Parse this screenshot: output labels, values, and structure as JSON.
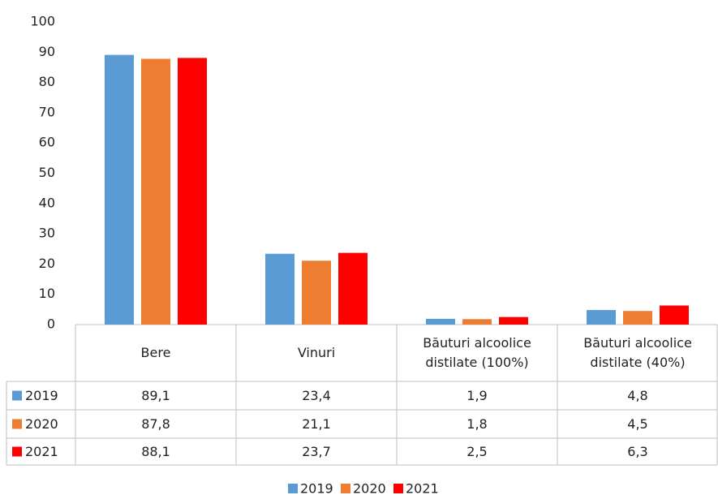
{
  "chart_data": {
    "type": "bar",
    "categories": [
      "Bere",
      "Vinuri",
      "Băuturi alcoolice distilate (100%)",
      "Băuturi alcoolice distilate (40%)"
    ],
    "series": [
      {
        "name": "2019",
        "color": "#5b9bd5",
        "values": [
          89.1,
          23.4,
          1.9,
          4.8
        ],
        "value_labels": [
          "89,1",
          "23,4",
          "1,9",
          "4,8"
        ]
      },
      {
        "name": "2020",
        "color": "#ed7d31",
        "values": [
          87.8,
          21.1,
          1.8,
          4.5
        ],
        "value_labels": [
          "87,8",
          "21,1",
          "1,8",
          "4,5"
        ]
      },
      {
        "name": "2021",
        "color": "#ff0000",
        "values": [
          88.1,
          23.7,
          2.5,
          6.3
        ],
        "value_labels": [
          "88,1",
          "23,7",
          "2,5",
          "6,3"
        ]
      }
    ],
    "ylim": [
      0,
      100
    ],
    "yticks": [
      0,
      10,
      20,
      30,
      40,
      50,
      60,
      70,
      80,
      90,
      100
    ],
    "grid": false
  }
}
